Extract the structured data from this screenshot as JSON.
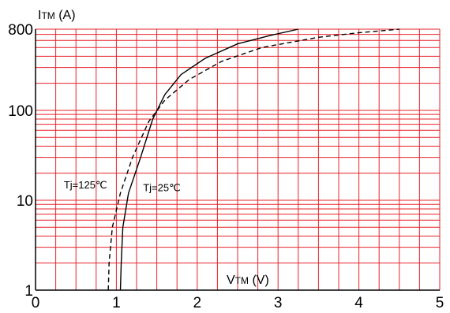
{
  "chart_data": {
    "type": "line",
    "y_scale": "log",
    "x_axis": {
      "label_main": "V",
      "label_sub": "TM",
      "label_unit": "(V)",
      "ticks": [
        "0",
        "1",
        "2",
        "3",
        "4",
        "5"
      ],
      "range": [
        0,
        5
      ]
    },
    "y_axis": {
      "label_main": "I",
      "label_sub": "TM",
      "label_unit": "(A)",
      "ticks": [
        "1",
        "10",
        "100",
        "800"
      ],
      "tick_values": [
        1,
        10,
        100,
        800
      ],
      "range": [
        1,
        800
      ]
    },
    "grid": true,
    "series": [
      {
        "name": "Tj=25℃",
        "dash": "solid",
        "points": [
          [
            1.05,
            1
          ],
          [
            1.06,
            2
          ],
          [
            1.08,
            5
          ],
          [
            1.15,
            12
          ],
          [
            1.3,
            30
          ],
          [
            1.45,
            80
          ],
          [
            1.6,
            150
          ],
          [
            1.8,
            250
          ],
          [
            2.1,
            380
          ],
          [
            2.5,
            550
          ],
          [
            2.9,
            680
          ],
          [
            3.25,
            800
          ]
        ]
      },
      {
        "name": "Tj=125℃",
        "dash": "dashed",
        "points": [
          [
            0.9,
            1
          ],
          [
            0.91,
            2
          ],
          [
            0.95,
            5
          ],
          [
            1.05,
            12
          ],
          [
            1.2,
            30
          ],
          [
            1.4,
            75
          ],
          [
            1.6,
            130
          ],
          [
            1.9,
            220
          ],
          [
            2.3,
            350
          ],
          [
            2.8,
            500
          ],
          [
            3.5,
            650
          ],
          [
            4.0,
            730
          ],
          [
            4.5,
            800
          ]
        ]
      }
    ],
    "annotations": [
      {
        "text": "Tj=125℃",
        "x": 0.35,
        "y": 15
      },
      {
        "text": "Tj=25℃",
        "x": 1.33,
        "y": 14
      }
    ],
    "colors": {
      "grid": "#e8232a",
      "series": "#000000",
      "axis": "#000000"
    }
  }
}
